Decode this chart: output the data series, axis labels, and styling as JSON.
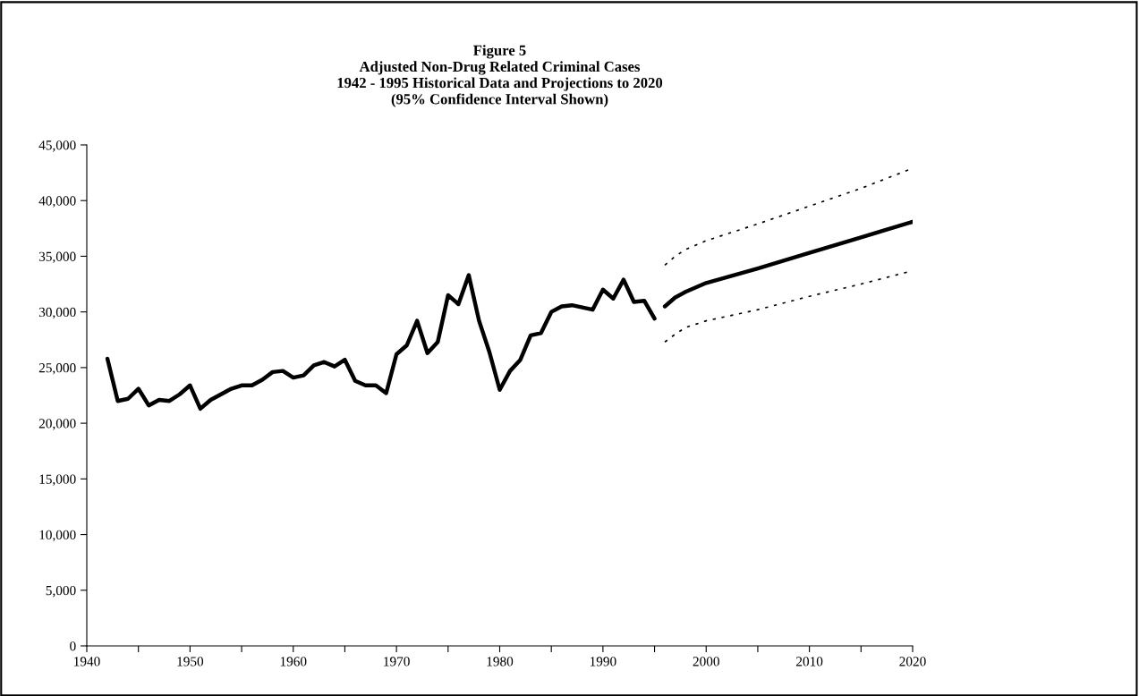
{
  "chart_data": {
    "type": "line",
    "title": "Figure 5\nAdjusted Non-Drug Related Criminal Cases\n1942 - 1995 Historical Data and Projections to 2020\n(95% Confidence Interval Shown)",
    "series": [
      {
        "color": "#000000",
        "line_style": "solid",
        "x": [
          1942,
          1943,
          1944,
          1945,
          1946,
          1947,
          1948,
          1949,
          1950,
          1951,
          1952,
          1953,
          1954,
          1955,
          1956,
          1957,
          1958,
          1959,
          1960,
          1961,
          1962,
          1963,
          1964,
          1965,
          1966,
          1967,
          1968,
          1969,
          1970,
          1971,
          1972,
          1973,
          1974,
          1975,
          1976,
          1977,
          1978,
          1979,
          1980,
          1981,
          1982,
          1983,
          1984,
          1985,
          1986,
          1987,
          1988,
          1989,
          1990,
          1991,
          1992,
          1993,
          1994,
          1995
        ],
        "values": [
          25800,
          22000,
          22200,
          23100,
          21600,
          22100,
          22000,
          22600,
          23400,
          21300,
          22100,
          22600,
          23100,
          23400,
          23400,
          23900,
          24600,
          24700,
          24100,
          24300,
          25200,
          25500,
          25100,
          25700,
          23800,
          23400,
          23400,
          22700,
          26200,
          27000,
          29200,
          26300,
          27300,
          31500,
          30700,
          33300,
          29200,
          26400,
          23000,
          24700,
          25700,
          27900,
          28100,
          30000,
          30500,
          30600,
          30400,
          30200,
          32000,
          31200,
          32900,
          30900,
          31000,
          29400
        ]
      },
      {
        "color": "#000000",
        "line_style": "solid",
        "x": [
          1996,
          1997,
          1998,
          1999,
          2000,
          2005,
          2010,
          2015,
          2020
        ],
        "values": [
          30500,
          31300,
          31800,
          32200,
          32600,
          33900,
          35300,
          36700,
          38100
        ]
      },
      {
        "color": "#000000",
        "line_style": "dotted",
        "x": [
          1996,
          1997,
          1998,
          1999,
          2000,
          2005,
          2010,
          2015,
          2020
        ],
        "values": [
          34200,
          35000,
          35600,
          36000,
          36400,
          37900,
          39500,
          41100,
          42900
        ]
      },
      {
        "color": "#000000",
        "line_style": "dotted",
        "x": [
          1996,
          1997,
          1998,
          1999,
          2000,
          2005,
          2010,
          2015,
          2020
        ],
        "values": [
          27300,
          28000,
          28600,
          28900,
          29200,
          30200,
          31400,
          32500,
          33700
        ]
      }
    ],
    "xlim": [
      1940,
      2020
    ],
    "xticks": [
      1940,
      {
        "value": 1945,
        "label": null
      },
      1950,
      {
        "value": 1955,
        "label": null
      },
      1960,
      {
        "value": 1965,
        "label": null
      },
      1970,
      {
        "value": 1975,
        "label": null
      },
      1980,
      {
        "value": 1985,
        "label": null
      },
      1990,
      {
        "value": 1995,
        "label": null
      },
      2000,
      {
        "value": 2005,
        "label": null
      },
      2010,
      {
        "value": 2015,
        "label": null
      },
      2020
    ],
    "ylim": [
      0,
      45000
    ],
    "yticks": [
      0,
      {
        "value": 5000,
        "label": "5,000"
      },
      {
        "value": 10000,
        "label": "10,000"
      },
      {
        "value": 15000,
        "label": "15,000"
      },
      {
        "value": 20000,
        "label": "20,000"
      },
      {
        "value": 25000,
        "label": "25,000"
      },
      {
        "value": 30000,
        "label": "30,000"
      },
      {
        "value": 35000,
        "label": "35,000"
      },
      {
        "value": 40000,
        "label": "40,000"
      },
      {
        "value": 45000,
        "label": "45,000"
      }
    ],
    "grid": false,
    "legend": false
  }
}
